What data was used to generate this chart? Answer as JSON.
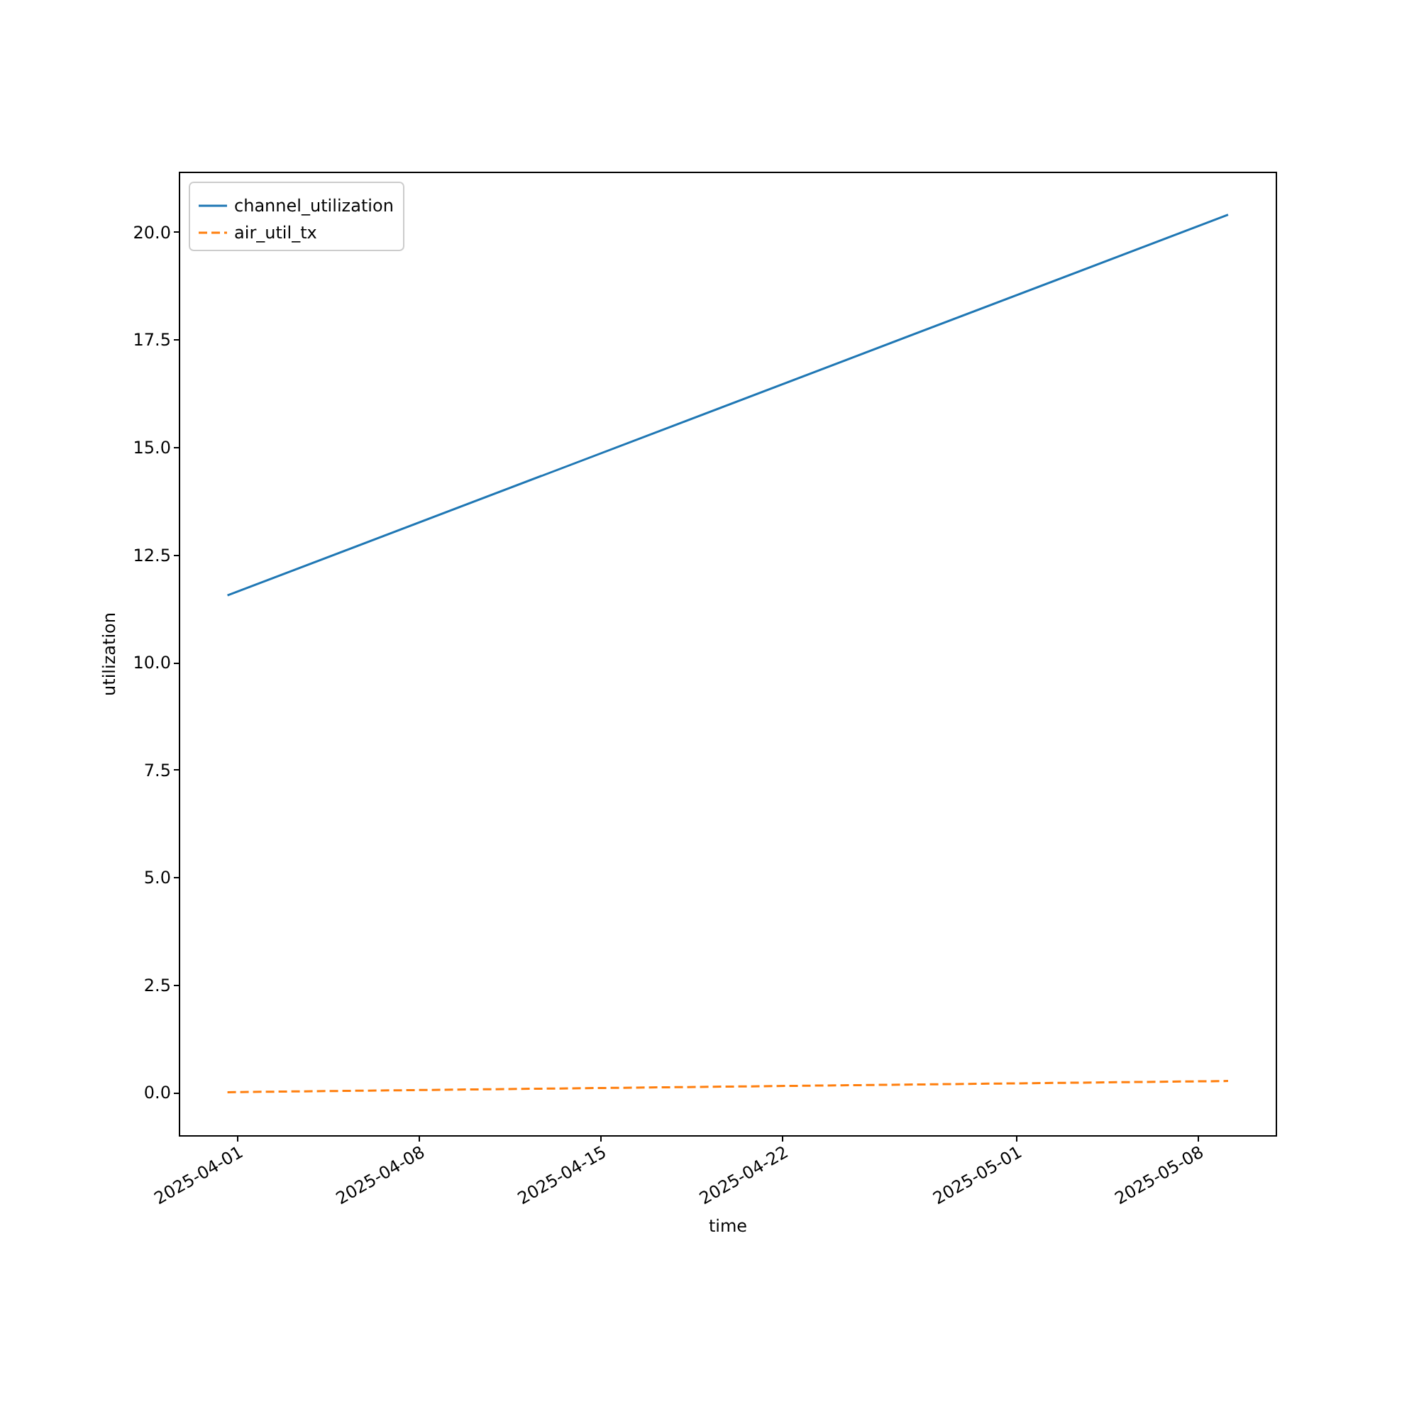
{
  "chart_data": {
    "type": "line",
    "xlabel": "time",
    "ylabel": "utilization",
    "xlim": [
      "2025-03-29T18:00",
      "2025-05-11"
    ],
    "ylim": [
      -1.0,
      21.4
    ],
    "xticks": [
      "2025-04-01",
      "2025-04-08",
      "2025-04-15",
      "2025-04-22",
      "2025-05-01",
      "2025-05-08"
    ],
    "yticks": [
      {
        "value": 0,
        "label": "0.0"
      },
      {
        "value": 2.5,
        "label": "2.5"
      },
      {
        "value": 5,
        "label": "5.0"
      },
      {
        "value": 7.5,
        "label": "7.5"
      },
      {
        "value": 10,
        "label": "10.0"
      },
      {
        "value": 12.5,
        "label": "12.5"
      },
      {
        "value": 15,
        "label": "15.0"
      },
      {
        "value": 17.5,
        "label": "17.5"
      },
      {
        "value": 20,
        "label": "20.0"
      }
    ],
    "grid": false,
    "legend": "top left",
    "series": [
      {
        "name": "channel_utilization",
        "color": "#1f77b4",
        "line_style": "solid",
        "x": [
          "2025-03-31T15:00",
          "2025-05-09T04:00"
        ],
        "values": [
          11.55,
          20.4
        ]
      },
      {
        "name": "air_util_tx",
        "color": "#ff7f0e",
        "line_style": "dashed",
        "x": [
          "2025-03-31T15:00",
          "2025-05-09T04:00"
        ],
        "values": [
          0.0,
          0.26
        ]
      }
    ]
  }
}
